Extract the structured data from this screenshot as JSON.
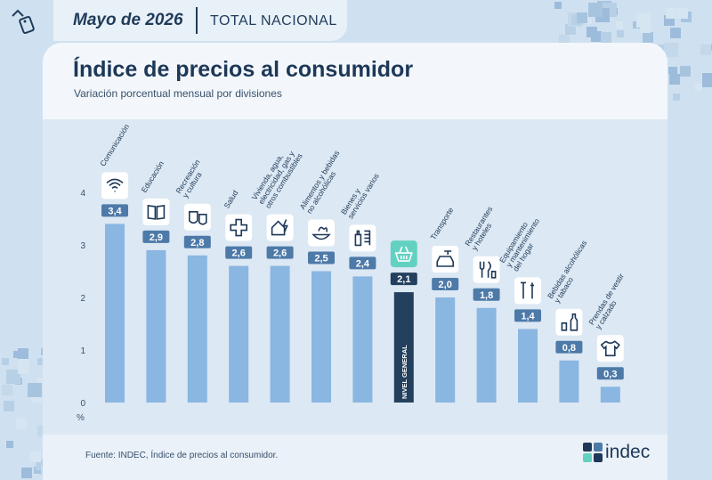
{
  "header": {
    "period": "Mayo de 2026",
    "scope": "TOTAL NACIONAL",
    "title": "Índice de precios al consumidor",
    "subtitle": "Variación porcentual mensual por divisiones"
  },
  "footer": {
    "source": "Fuente: INDEC, Índice de precios al consumidor.",
    "logo_text": "indec"
  },
  "colors": {
    "bar": "#8ab6e2",
    "bar_highlight": "#23405e",
    "label_bg": "#4d7aa8",
    "label_bg_highlight": "#23405e",
    "icon_highlight_bg": "#63d1c1"
  },
  "chart_data": {
    "type": "bar",
    "title": "Índice de precios al consumidor",
    "subtitle": "Variación porcentual mensual por divisiones",
    "ylabel": "%",
    "ylim": [
      0,
      4
    ],
    "yticks": [
      "0",
      "1",
      "2",
      "3",
      "4"
    ],
    "categories": [
      "Comunicación",
      "Educación",
      "Recreación y cultura",
      "Salud",
      "Vivienda, agua, electricidad, gas y otros combustibles",
      "Alimentos y bebidas no alcohólicas",
      "Bienes y servicios varios",
      "Nivel general",
      "Transporte",
      "Restaurantes y hoteles",
      "Equipamiento y mantenimiento del hogar",
      "Bebidas alcohólicas y tabaco",
      "Prendas de vestir y calzado"
    ],
    "category_lines": [
      [
        "Comunicación"
      ],
      [
        "Educación"
      ],
      [
        "Recreación",
        "y cultura"
      ],
      [
        "Salud"
      ],
      [
        "Vivienda, agua,",
        "electricidad, gas y",
        "otros combustibles"
      ],
      [
        "Alimentos y bebidas",
        "no alcohólicas"
      ],
      [
        "Bienes y",
        "servicios varios"
      ],
      [
        "NIVEL GENERAL"
      ],
      [
        "Transporte"
      ],
      [
        "Restaurantes",
        "y hoteles"
      ],
      [
        "Equipamiento",
        "y mantenimiento",
        "del hogar"
      ],
      [
        "Bebidas alcohólicas",
        "y tabaco"
      ],
      [
        "Prendas de vestir",
        "y calzado"
      ]
    ],
    "values": [
      3.4,
      2.9,
      2.8,
      2.6,
      2.6,
      2.5,
      2.4,
      2.1,
      2.0,
      1.8,
      1.4,
      0.8,
      0.3
    ],
    "value_labels": [
      "3,4",
      "2,9",
      "2,8",
      "2,6",
      "2,6",
      "2,5",
      "2,4",
      "2,1",
      "2,0",
      "1,8",
      "1,4",
      "0,8",
      "0,3"
    ],
    "icons": [
      "wifi-icon",
      "book-icon",
      "theater-masks-icon",
      "cross-icon",
      "house-bolt-icon",
      "food-bowl-icon",
      "bottle-comb-icon",
      "basket-icon",
      "car-fuel-icon",
      "fork-knife-icon",
      "tools-icon",
      "bottle-glass-icon",
      "tshirt-icon"
    ],
    "highlight_index": 7,
    "grid": false
  }
}
